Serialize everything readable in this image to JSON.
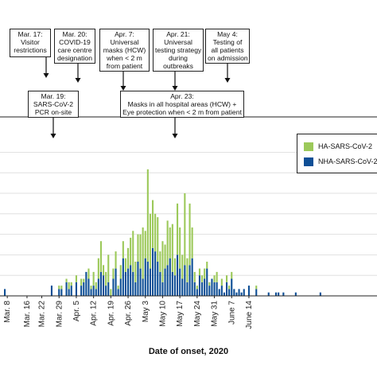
{
  "chart_data": {
    "type": "bar",
    "stacked": true,
    "xlabel": "Date of onset, 2020",
    "ylabel": "",
    "ylim": [
      0,
      42
    ],
    "grid": "horizontal",
    "tick_labels": [
      "Mar. 8",
      "Mar. 16",
      "Mar. 22",
      "Mar. 29",
      "Apr. 5",
      "Apr. 12",
      "Apr. 19",
      "Apr. 26",
      "May 3",
      "May 10",
      "May 17",
      "May 24",
      "May 31",
      "June 7",
      "June 14"
    ],
    "legend_position": "right",
    "colors": {
      "ha": "#9cc95a",
      "nha": "#0f4f96"
    },
    "series": [
      {
        "name": "HA-SARS-CoV-2",
        "values": [
          0,
          0,
          0,
          0,
          0,
          0,
          0,
          0,
          0,
          0,
          0,
          0,
          0,
          0,
          0,
          0,
          0,
          0,
          0,
          0,
          0,
          0,
          1,
          1,
          0,
          1,
          2,
          1,
          0,
          2,
          0,
          2,
          1,
          0,
          3,
          1,
          4,
          2,
          6,
          9,
          3,
          4,
          8,
          2,
          3,
          5,
          1,
          4,
          5,
          4,
          6,
          8,
          12,
          6,
          8,
          10,
          15,
          8,
          27,
          16,
          14,
          11,
          13,
          6,
          12,
          7,
          13,
          9,
          14,
          5,
          15,
          12,
          7,
          21,
          7,
          18,
          9,
          3,
          1,
          2,
          2,
          3,
          2,
          1,
          0,
          2,
          3,
          0,
          2,
          0,
          2,
          1,
          2,
          0,
          0,
          0,
          0,
          0,
          0,
          0,
          0,
          0,
          1,
          0,
          0,
          0,
          0,
          0,
          0,
          0,
          0,
          0,
          0,
          0,
          0,
          0,
          0,
          0,
          0,
          0,
          0,
          0,
          0,
          0,
          0,
          0,
          0,
          0,
          0
        ]
      },
      {
        "name": "NHA-SARS-CoV-2",
        "values": [
          2,
          0,
          0,
          0,
          0,
          0,
          0,
          0,
          0,
          0,
          0,
          0,
          0,
          0,
          0,
          0,
          0,
          0,
          0,
          3,
          0,
          0,
          2,
          2,
          0,
          4,
          2,
          3,
          0,
          4,
          0,
          3,
          4,
          7,
          5,
          2,
          3,
          2,
          5,
          7,
          6,
          3,
          4,
          0,
          5,
          8,
          2,
          5,
          11,
          7,
          8,
          9,
          7,
          4,
          10,
          8,
          5,
          11,
          10,
          8,
          14,
          13,
          10,
          7,
          4,
          8,
          9,
          11,
          7,
          6,
          12,
          8,
          5,
          9,
          4,
          9,
          11,
          4,
          2,
          6,
          4,
          5,
          8,
          3,
          5,
          4,
          4,
          2,
          3,
          1,
          4,
          2,
          5,
          2,
          1,
          2,
          1,
          2,
          0,
          3,
          0,
          0,
          2,
          0,
          0,
          0,
          0,
          1,
          0,
          0,
          1,
          1,
          0,
          1,
          0,
          0,
          0,
          0,
          1,
          0,
          0,
          0,
          0,
          0,
          0,
          0,
          0,
          0,
          1
        ]
      }
    ]
  },
  "legend": {
    "ha_label": "HA-SARS-CoV-2",
    "nha_label": "NHA-SARS-CoV-2"
  },
  "annotations": [
    {
      "id": "mar17",
      "lines": [
        "Mar. 17:",
        "Visitor",
        "restrictions"
      ]
    },
    {
      "id": "mar20",
      "lines": [
        "Mar. 20:",
        "COVID-19",
        "care centre",
        "designation"
      ]
    },
    {
      "id": "apr7",
      "lines": [
        "Apr. 7:",
        "Universal",
        "masks (HCW)",
        "when < 2 m",
        "from patient"
      ]
    },
    {
      "id": "apr21",
      "lines": [
        "Apr. 21:",
        "Universal",
        "testing strategy",
        "during",
        "outbreaks"
      ]
    },
    {
      "id": "may4",
      "lines": [
        "May 4:",
        "Testing of",
        "all patients",
        "on admission"
      ]
    },
    {
      "id": "mar19",
      "lines": [
        "Mar. 19:",
        "SARS-CoV-2",
        "PCR on-site"
      ]
    },
    {
      "id": "apr23",
      "lines": [
        "Apr. 23:",
        "Masks in all hospital areas (HCW) +",
        "Eye protection when < 2 m from patient"
      ]
    }
  ]
}
